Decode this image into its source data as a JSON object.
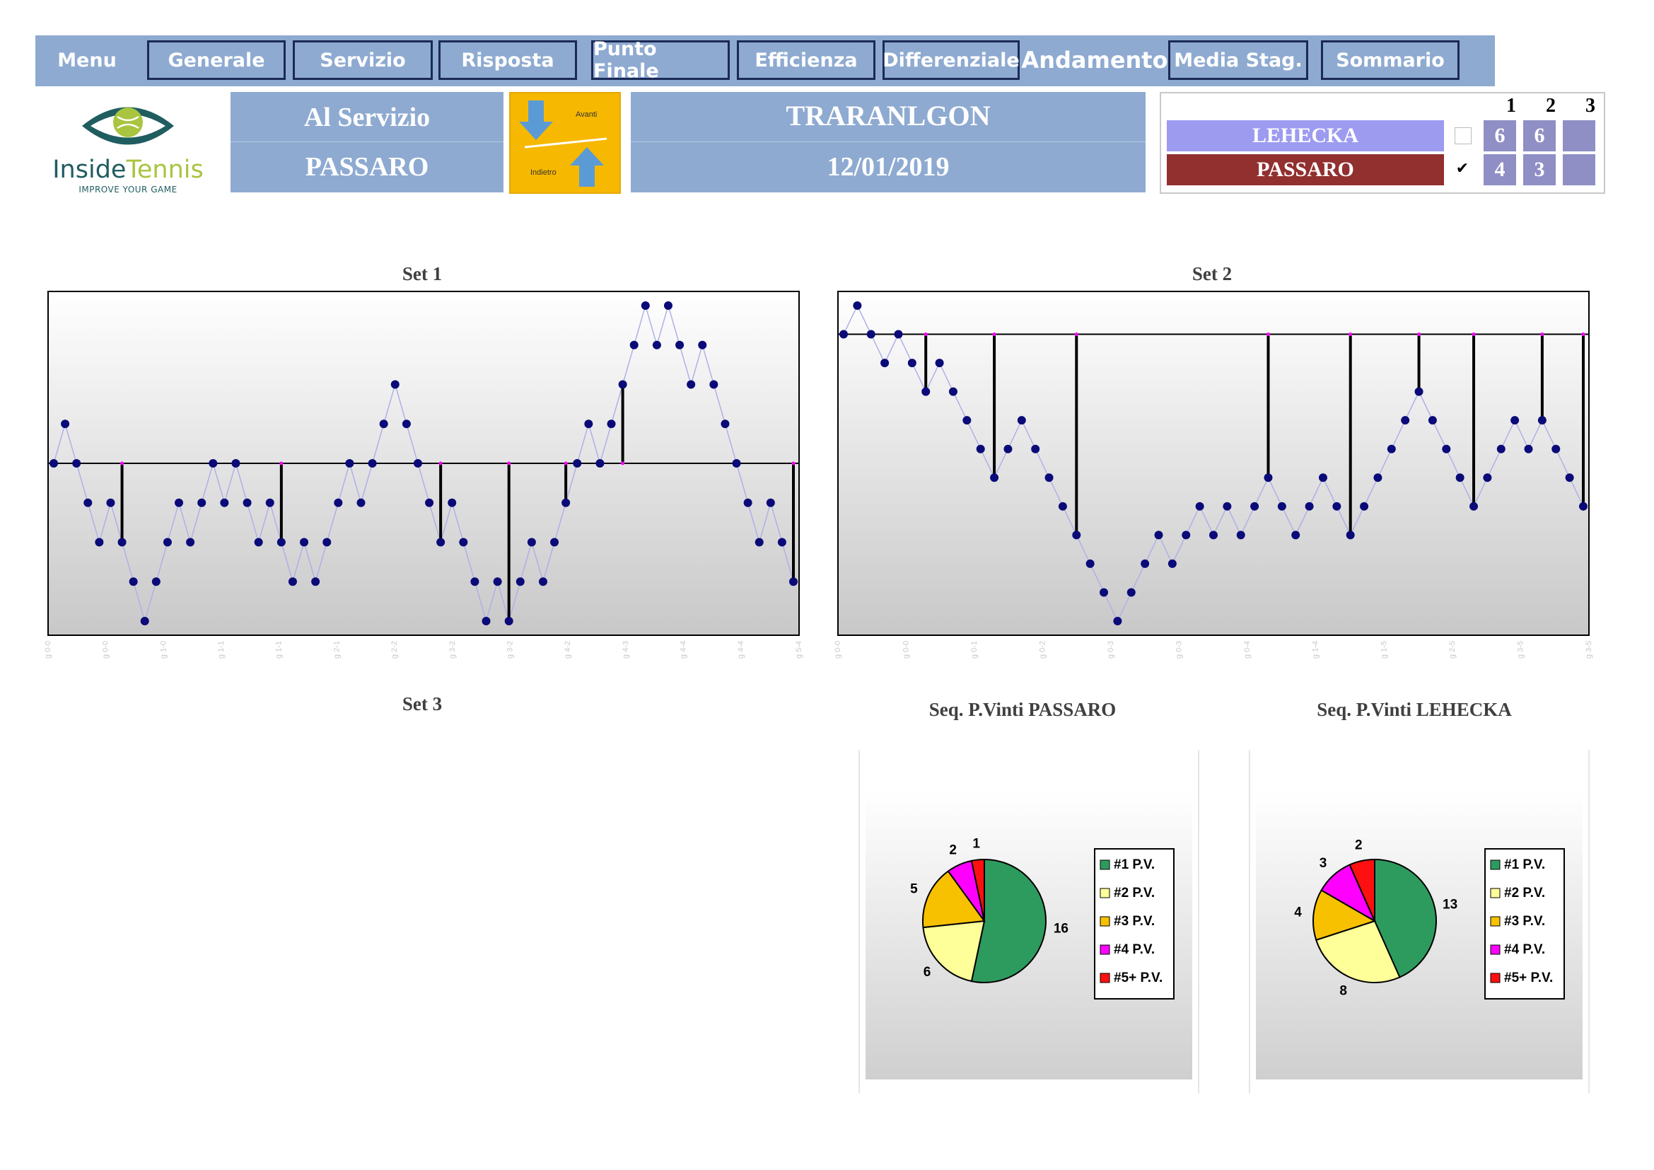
{
  "nav": {
    "items": [
      {
        "label": "Menu",
        "style": "plain"
      },
      {
        "label": "Generale",
        "style": "boxed"
      },
      {
        "label": "Servizio",
        "style": "boxed"
      },
      {
        "label": "Risposta",
        "style": "boxed"
      },
      {
        "label": "Punto Finale",
        "style": "boxed"
      },
      {
        "label": "Efficienza",
        "style": "boxed"
      },
      {
        "label": "Differenziale",
        "style": "boxed"
      },
      {
        "label": "Andamento",
        "style": "active"
      },
      {
        "label": "Media Stag.",
        "style": "boxed"
      },
      {
        "label": "Sommario",
        "style": "boxed"
      }
    ]
  },
  "logo": {
    "text_a": "Inside",
    "text_b": "Tennis",
    "tagline": "IMPROVE YOUR GAME"
  },
  "serve": {
    "label": "Al Servizio",
    "player": "PASSARO"
  },
  "nav_arrows": {
    "forward": "Avanti",
    "back": "Indietro"
  },
  "event": {
    "name": "TRARANLGON",
    "date": "12/01/2019"
  },
  "scoreboard": {
    "set_numbers": [
      "1",
      "2",
      "3"
    ],
    "players": [
      {
        "name": "LEHECKA",
        "color": "#9d9bf0",
        "serving": false,
        "scores": [
          "6",
          "6",
          ""
        ]
      },
      {
        "name": "PASSARO",
        "color": "#922f2f",
        "serving": true,
        "scores": [
          "4",
          "3",
          ""
        ]
      }
    ],
    "check_mark": "✔"
  },
  "charts": {
    "set1": {
      "title": "Set 1",
      "type": "line",
      "ylim": [
        -4,
        4
      ],
      "y": [
        0,
        1,
        0,
        -1,
        -2,
        -1,
        -2,
        -3,
        -4,
        -3,
        -2,
        -1,
        -2,
        -1,
        0,
        -1,
        0,
        -1,
        -2,
        -1,
        -2,
        -3,
        -2,
        -3,
        -2,
        -1,
        0,
        -1,
        0,
        1,
        2,
        1,
        0,
        -1,
        -2,
        -1,
        -2,
        -3,
        -4,
        -3,
        -4,
        -3,
        -2,
        -3,
        -2,
        -1,
        0,
        1,
        0,
        1,
        2,
        3,
        4,
        3,
        4,
        3,
        2,
        3,
        2,
        1,
        0,
        -1,
        -2,
        -1,
        -2,
        -3
      ],
      "game_ends": [
        6,
        20,
        34,
        40,
        45,
        50,
        65
      ],
      "ticks": [
        "g 0-0",
        "g 0-0",
        "g 1-0",
        "g 1-1",
        "g 1-1",
        "g 2-1",
        "g 2-2",
        "g 3-2",
        "g 3-2",
        "g 4-2",
        "g 4-3",
        "g 4-4",
        "g 4-4",
        "g 5-4"
      ]
    },
    "set2": {
      "title": "Set 2",
      "type": "line",
      "ylim": [
        -10,
        1
      ],
      "y": [
        0,
        1,
        0,
        -1,
        0,
        -1,
        -2,
        -1,
        -2,
        -3,
        -4,
        -5,
        -4,
        -3,
        -4,
        -5,
        -6,
        -7,
        -8,
        -9,
        -10,
        -9,
        -8,
        -7,
        -8,
        -7,
        -6,
        -7,
        -6,
        -7,
        -6,
        -5,
        -6,
        -7,
        -6,
        -5,
        -6,
        -7,
        -6,
        -5,
        -4,
        -3,
        -2,
        -3,
        -4,
        -5,
        -6,
        -5,
        -4,
        -3,
        -4,
        -3,
        -4,
        -5,
        -6
      ],
      "game_ends": [
        6,
        11,
        17,
        31,
        37,
        42,
        46,
        51,
        54
      ],
      "ticks": [
        "g 0-0",
        "g 0-0",
        "g 0-1",
        "g 0-2",
        "g 0-3",
        "g 0-3",
        "g 0-4",
        "g 1-4",
        "g 1-5",
        "g 2-5",
        "g 3-5",
        "g 3-5"
      ]
    },
    "set3": {
      "title": "Set 3"
    }
  },
  "pies": [
    {
      "title": "Seq. P.Vinti PASSARO",
      "chart_data": {
        "type": "pie",
        "categories": [
          "#1 P.V.",
          "#2 P.V.",
          "#3 P.V.",
          "#4 P.V.",
          "#5+ P.V."
        ],
        "values": [
          16,
          6,
          5,
          2,
          1
        ],
        "colors": [
          "#2e9b5e",
          "#ffff99",
          "#f7c100",
          "#ff00ff",
          "#ff1010"
        ]
      }
    },
    {
      "title": "Seq. P.Vinti LEHECKA",
      "chart_data": {
        "type": "pie",
        "categories": [
          "#1 P.V.",
          "#2 P.V.",
          "#3 P.V.",
          "#4 P.V.",
          "#5+ P.V."
        ],
        "values": [
          13,
          8,
          4,
          3,
          2
        ],
        "colors": [
          "#2e9b5e",
          "#ffff99",
          "#f7c100",
          "#ff00ff",
          "#ff1010"
        ]
      }
    }
  ]
}
